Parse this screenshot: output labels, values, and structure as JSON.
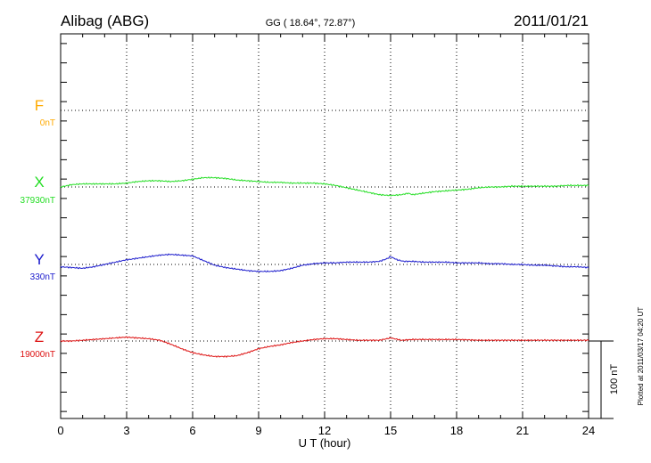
{
  "header": {
    "station": "Alibag (ABG)",
    "coords": "GG ( 18.64°,  72.87°)",
    "date": "2011/01/21"
  },
  "side_note": "Plotted at 2011/03/17 04:20 UT",
  "scale_label": "100 nT",
  "colors": {
    "F": "#ffaa00",
    "X": "#22dd22",
    "Y": "#1a1acc",
    "Z": "#dd1111",
    "axis": "#000000"
  },
  "chart_data": {
    "type": "line",
    "xlabel": "U T (hour)",
    "ylabel": "",
    "xlim": [
      0,
      24
    ],
    "x_ticks": [
      "0",
      "3",
      "6",
      "9",
      "12",
      "15",
      "18",
      "21",
      "24"
    ],
    "grid": true,
    "y_units": "nT relative to component baseline",
    "components": [
      {
        "key": "F",
        "letter": "F",
        "baseline_label": "0nT",
        "values": []
      },
      {
        "key": "X",
        "letter": "X",
        "baseline_label": "37930nT",
        "x": [
          0,
          0.5,
          1,
          1.5,
          2,
          2.5,
          3,
          3.5,
          4,
          4.5,
          5,
          5.5,
          6,
          6.5,
          7,
          7.5,
          8,
          8.5,
          9,
          9.5,
          10,
          10.5,
          11,
          11.5,
          12,
          12.5,
          13,
          13.5,
          14,
          14.5,
          15,
          15.5,
          15.8,
          16,
          16.5,
          17,
          17.5,
          18,
          18.5,
          19,
          19.5,
          20,
          20.5,
          21,
          21.5,
          22,
          22.5,
          23,
          23.5,
          24
        ],
        "values": [
          0,
          3,
          4,
          4,
          4,
          4,
          5,
          7,
          8,
          8,
          7,
          8,
          10,
          12,
          12,
          11,
          9,
          8,
          7,
          6,
          6,
          5,
          5,
          5,
          4,
          2,
          -1,
          -4,
          -7,
          -10,
          -11,
          -10,
          -8,
          -10,
          -8,
          -6,
          -5,
          -4,
          -3,
          -1,
          0,
          0,
          1,
          1,
          1,
          1,
          1,
          2,
          2,
          2
        ]
      },
      {
        "key": "Y",
        "letter": "Y",
        "baseline_label": "330nT",
        "x": [
          0,
          0.5,
          1,
          1.5,
          2,
          2.5,
          3,
          3.5,
          4,
          4.5,
          5,
          5.5,
          6,
          6.5,
          7,
          7.5,
          8,
          8.5,
          9,
          9.5,
          10,
          10.5,
          11,
          11.5,
          12,
          12.5,
          13,
          13.5,
          14,
          14.5,
          14.8,
          15,
          15.3,
          15.6,
          16,
          16.5,
          17,
          17.5,
          18,
          18.5,
          19,
          19.5,
          20,
          20.5,
          21,
          21.5,
          22,
          22.5,
          23,
          23.5,
          24
        ],
        "values": [
          -3,
          -4,
          -5,
          -3,
          0,
          3,
          6,
          8,
          10,
          12,
          13,
          12,
          11,
          5,
          -1,
          -4,
          -6,
          -8,
          -9,
          -9,
          -8,
          -5,
          -1,
          1,
          2,
          2,
          3,
          3,
          3,
          4,
          7,
          10,
          6,
          4,
          4,
          3,
          3,
          3,
          2,
          2,
          2,
          1,
          1,
          0,
          0,
          -1,
          -1,
          -2,
          -3,
          -3,
          -4
        ]
      },
      {
        "key": "Z",
        "letter": "Z",
        "baseline_label": "19000nT",
        "x": [
          0,
          0.5,
          1,
          1.5,
          2,
          2.5,
          3,
          3.5,
          4,
          4.5,
          5,
          5.5,
          6,
          6.5,
          7,
          7.5,
          8,
          8.5,
          9,
          9.5,
          10,
          10.5,
          11,
          11.5,
          12,
          12.5,
          13,
          13.5,
          14,
          14.5,
          15,
          15.5,
          16,
          16.5,
          17,
          18,
          19,
          20,
          21,
          22,
          23,
          24
        ],
        "values": [
          0,
          0,
          1,
          2,
          3,
          4,
          5,
          4,
          3,
          1,
          -4,
          -10,
          -15,
          -18,
          -20,
          -20,
          -19,
          -15,
          -10,
          -7,
          -5,
          -2,
          0,
          2,
          3,
          3,
          2,
          1,
          1,
          1,
          4,
          1,
          2,
          2,
          2,
          2,
          1,
          1,
          1,
          1,
          1,
          1
        ]
      }
    ]
  }
}
